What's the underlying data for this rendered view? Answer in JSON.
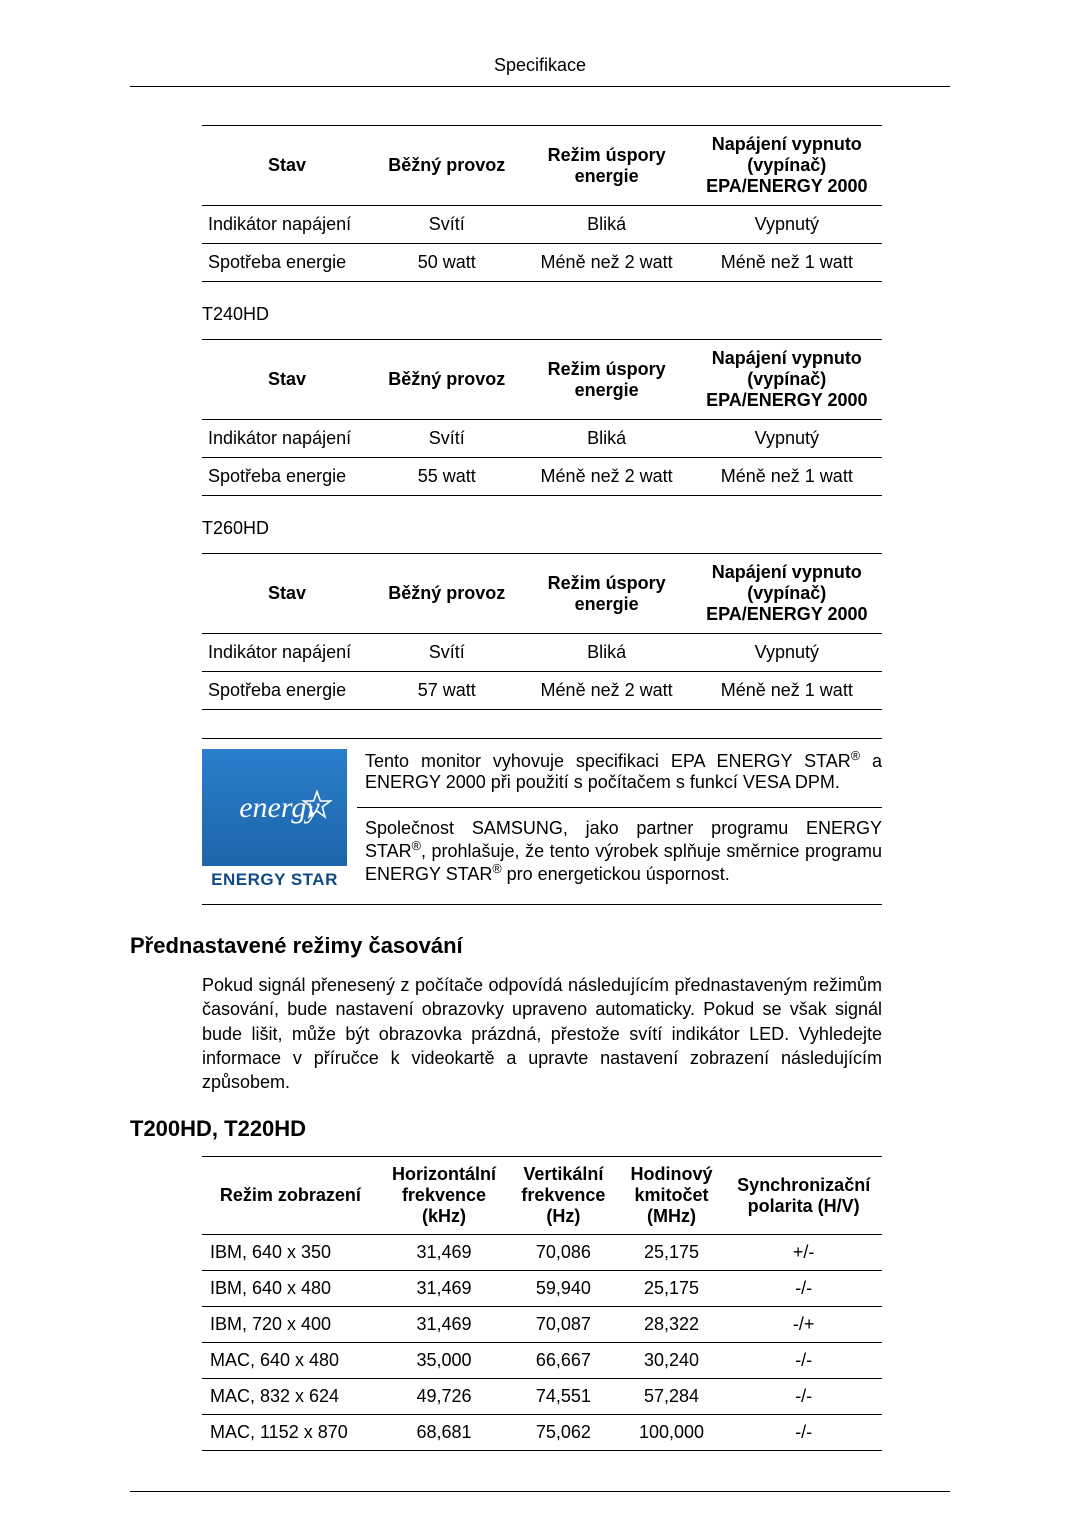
{
  "header": {
    "title": "Specifikace"
  },
  "power_tables": {
    "headers": {
      "state": "Stav",
      "normal": "Běžný provoz",
      "saving": "Režim úspory energie",
      "off": "Napájení vypnuto (vypínač) EPA/ENERGY 2000"
    },
    "row_labels": {
      "indicator": "Indikátor napájení",
      "consumption": "Spotřeba energie"
    },
    "common_cells": {
      "sviti": "Svítí",
      "blika": "Bliká",
      "vypnuty": "Vypnutý",
      "less2": "Méně než 2 watt",
      "less1": "Méně než 1 watt"
    },
    "first": {
      "consumption_normal": "50 watt"
    },
    "t240_label": "T240HD",
    "t240": {
      "consumption_normal": "55 watt"
    },
    "t260_label": "T260HD",
    "t260": {
      "consumption_normal": "57 watt"
    }
  },
  "energy_star": {
    "logo_script": "energy",
    "logo_bar": "ENERGY STAR",
    "p1_a": "Tento monitor vyhovuje specifikaci EPA ENERGY STAR",
    "p1_b": " a ENERGY 2000 při použití s počítačem s funkcí VESA DPM.",
    "p2_a": "Společnost SAMSUNG, jako partner programu ENERGY STAR",
    "p2_b": ", prohlašuje, že tento výrobek splňuje směrnice programu ENERGY STAR",
    "p2_c": " pro energetickou úspornost."
  },
  "timing_heading": "Přednastavené režimy časování",
  "timing_para": "Pokud signál přenesený z počítače odpovídá následujícím přednastaveným režimům časování, bude nastavení obrazovky upraveno automaticky. Pokud se však signál bude lišit, může být obrazovka prázdná, přestože svítí indikátor LED. Vyhledejte informace v příručce k videokartě a upravte nastavení zobrazení následujícím způsobem.",
  "timing_models_heading": "T200HD, T220HD",
  "timing_table": {
    "headers": {
      "mode": "Režim zobrazení",
      "hfreq": "Horizontální frekvence (kHz)",
      "vfreq": "Vertikální frekvence (Hz)",
      "clock": "Hodinový kmitočet (MHz)",
      "polarity": "Synchronizační polarita (H/V)"
    },
    "rows": [
      {
        "mode": "IBM, 640 x 350",
        "h": "31,469",
        "v": "70,086",
        "c": "25,175",
        "p": "+/-"
      },
      {
        "mode": "IBM, 640 x 480",
        "h": "31,469",
        "v": "59,940",
        "c": "25,175",
        "p": "-/-"
      },
      {
        "mode": "IBM, 720 x 400",
        "h": "31,469",
        "v": "70,087",
        "c": "28,322",
        "p": "-/+"
      },
      {
        "mode": "MAC, 640 x 480",
        "h": "35,000",
        "v": "66,667",
        "c": "30,240",
        "p": "-/-"
      },
      {
        "mode": "MAC, 832 x 624",
        "h": "49,726",
        "v": "74,551",
        "c": "57,284",
        "p": "-/-"
      },
      {
        "mode": "MAC, 1152 x 870",
        "h": "68,681",
        "v": "75,062",
        "c": "100,000",
        "p": "-/-"
      }
    ]
  }
}
